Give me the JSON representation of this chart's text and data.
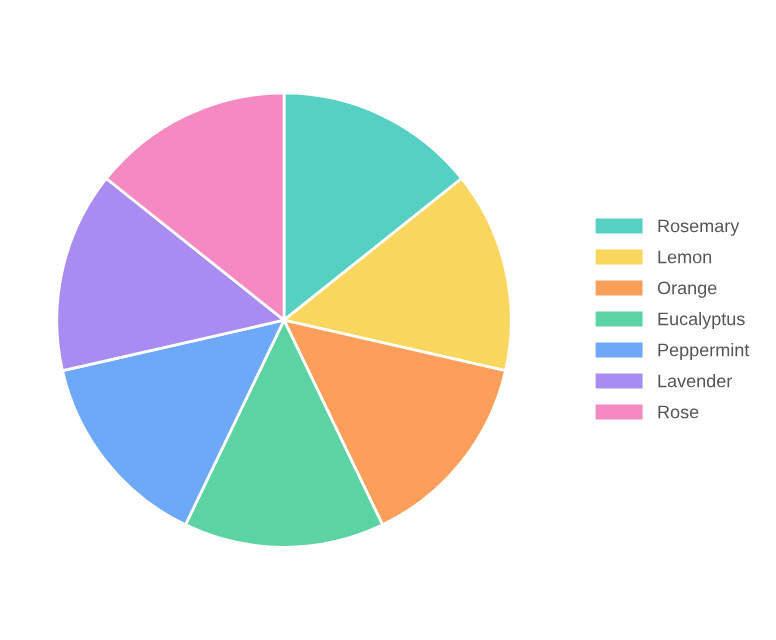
{
  "chart_data": {
    "type": "pie",
    "categories": [
      "Rosemary",
      "Lemon",
      "Orange",
      "Eucalyptus",
      "Peppermint",
      "Lavender",
      "Rose"
    ],
    "values": [
      14.2857,
      14.2857,
      14.2857,
      14.2857,
      14.2857,
      14.2857,
      14.2857
    ],
    "colors": [
      "#56d0c2",
      "#f9d75e",
      "#fd9f5b",
      "#5cd3a3",
      "#6ea8f8",
      "#a98cf1",
      "#f48ac1"
    ],
    "legend": "right"
  }
}
